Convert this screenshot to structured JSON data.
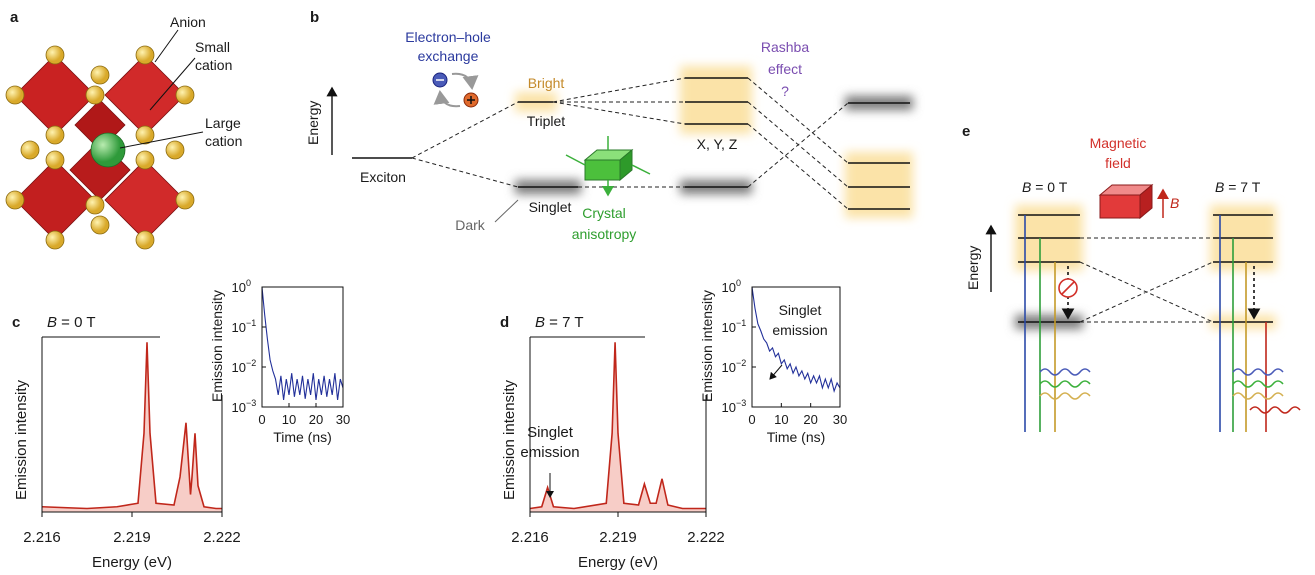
{
  "panel_a": {
    "label": "a",
    "anion": "Anion",
    "small_cation": [
      "Small",
      "cation"
    ],
    "large_cation": [
      "Large",
      "cation"
    ]
  },
  "panel_b": {
    "label": "b",
    "energy_axis": "Energy",
    "exciton": "Exciton",
    "bright": "Bright",
    "triplet": "Triplet",
    "singlet": "Singlet",
    "dark": "Dark",
    "exchange": [
      "Electron–hole",
      "exchange"
    ],
    "anisotropy": [
      "Crystal",
      "anisotropy"
    ],
    "xyz": "X, Y, Z",
    "rashba": [
      "Rashba",
      "effect",
      "?"
    ]
  },
  "panel_e": {
    "label": "e",
    "field": [
      "Magnetic",
      "field"
    ],
    "field_symbol": "B",
    "energy_axis": "Energy",
    "left": {
      "symbol": "B",
      "text": " = 0 T"
    },
    "right": {
      "symbol": "B",
      "text": " = 7 T"
    }
  },
  "chart_data": [
    {
      "type": "area",
      "panel_label": "c",
      "field_label": {
        "symbol": "B",
        "text": " = 0 T"
      },
      "xlabel": "Energy (eV)",
      "ylabel": "Emission intensity",
      "x": [
        2.216,
        2.2175,
        2.2185,
        2.2192,
        2.2194,
        2.2195,
        2.2196,
        2.2198,
        2.2204,
        2.2206,
        2.2208,
        2.22095,
        2.221,
        2.2211,
        2.2212,
        2.2214,
        2.2218,
        2.222
      ],
      "values": [
        0.03,
        0.02,
        0.03,
        0.05,
        0.45,
        0.97,
        0.45,
        0.05,
        0.04,
        0.2,
        0.51,
        0.1,
        0.2,
        0.45,
        0.15,
        0.03,
        0.02,
        0.02
      ],
      "xlim": [
        2.216,
        2.222
      ],
      "xticks": [
        2.216,
        2.219,
        2.222
      ],
      "ylim": [
        0,
        1
      ],
      "color": "#c0271b",
      "fill": "#f7cdc7"
    },
    {
      "type": "line",
      "log_y": true,
      "xlabel": "Time (ns)",
      "ylabel": "Emission intensity",
      "x": [
        0,
        1,
        2,
        3,
        4,
        5,
        6,
        7,
        8,
        9,
        10,
        11,
        12,
        13,
        14,
        15,
        16,
        17,
        18,
        19,
        20,
        21,
        22,
        23,
        24,
        25,
        26,
        27,
        28,
        29,
        30
      ],
      "values": [
        1,
        0.2,
        0.05,
        0.015,
        0.008,
        0.005,
        0.002,
        0.006,
        0.0015,
        0.005,
        0.002,
        0.007,
        0.0018,
        0.005,
        0.002,
        0.006,
        0.0016,
        0.005,
        0.002,
        0.007,
        0.0015,
        0.005,
        0.002,
        0.006,
        0.0018,
        0.005,
        0.002,
        0.007,
        0.0015,
        0.005,
        0.003
      ],
      "xlim": [
        0,
        30
      ],
      "xticks": [
        0,
        10,
        20,
        30
      ],
      "ylim": [
        0.001,
        1
      ],
      "yticks": [
        {
          "value": 0.001,
          "label": "10",
          "exponent": "−3"
        },
        {
          "value": 0.01,
          "label": "10",
          "exponent": "−2"
        },
        {
          "value": 0.1,
          "label": "10",
          "exponent": "−1"
        },
        {
          "value": 1,
          "label": "10",
          "exponent": "0"
        }
      ],
      "color": "#22309a"
    },
    {
      "type": "area",
      "panel_label": "d",
      "field_label": {
        "symbol": "B",
        "text": " = 7 T"
      },
      "xlabel": "Energy (eV)",
      "ylabel": "Emission intensity",
      "annotation": [
        "Singlet",
        "emission"
      ],
      "x": [
        2.216,
        2.2164,
        2.2166,
        2.2168,
        2.2175,
        2.2186,
        2.2188,
        2.2189,
        2.219,
        2.2192,
        2.2197,
        2.2199,
        2.2201,
        2.2203,
        2.2205,
        2.2207,
        2.2212,
        2.222
      ],
      "values": [
        0.02,
        0.03,
        0.14,
        0.03,
        0.02,
        0.05,
        0.45,
        0.97,
        0.45,
        0.05,
        0.04,
        0.16,
        0.05,
        0.05,
        0.19,
        0.04,
        0.02,
        0.02
      ],
      "xlim": [
        2.216,
        2.222
      ],
      "xticks": [
        2.216,
        2.219,
        2.222
      ],
      "ylim": [
        0,
        1
      ],
      "color": "#c0271b",
      "fill": "#f7cdc7"
    },
    {
      "type": "line",
      "log_y": true,
      "xlabel": "Time (ns)",
      "ylabel": "Emission intensity",
      "annotation": [
        "Singlet",
        "emission"
      ],
      "x": [
        0,
        1,
        2,
        3,
        4,
        5,
        6,
        7,
        8,
        9,
        10,
        11,
        12,
        13,
        14,
        15,
        16,
        17,
        18,
        19,
        20,
        21,
        22,
        23,
        24,
        25,
        26,
        27,
        28,
        29,
        30
      ],
      "values": [
        1,
        0.3,
        0.12,
        0.08,
        0.05,
        0.04,
        0.025,
        0.03,
        0.018,
        0.022,
        0.012,
        0.015,
        0.009,
        0.012,
        0.007,
        0.01,
        0.006,
        0.008,
        0.005,
        0.007,
        0.004,
        0.006,
        0.004,
        0.006,
        0.003,
        0.005,
        0.003,
        0.005,
        0.0025,
        0.004,
        0.003
      ],
      "xlim": [
        0,
        30
      ],
      "xticks": [
        0,
        10,
        20,
        30
      ],
      "ylim": [
        0.001,
        1
      ],
      "yticks": [
        {
          "value": 0.001,
          "label": "10",
          "exponent": "−3"
        },
        {
          "value": 0.01,
          "label": "10",
          "exponent": "−2"
        },
        {
          "value": 0.1,
          "label": "10",
          "exponent": "−1"
        },
        {
          "value": 1,
          "label": "10",
          "exponent": "0"
        }
      ],
      "color": "#22309a"
    }
  ]
}
